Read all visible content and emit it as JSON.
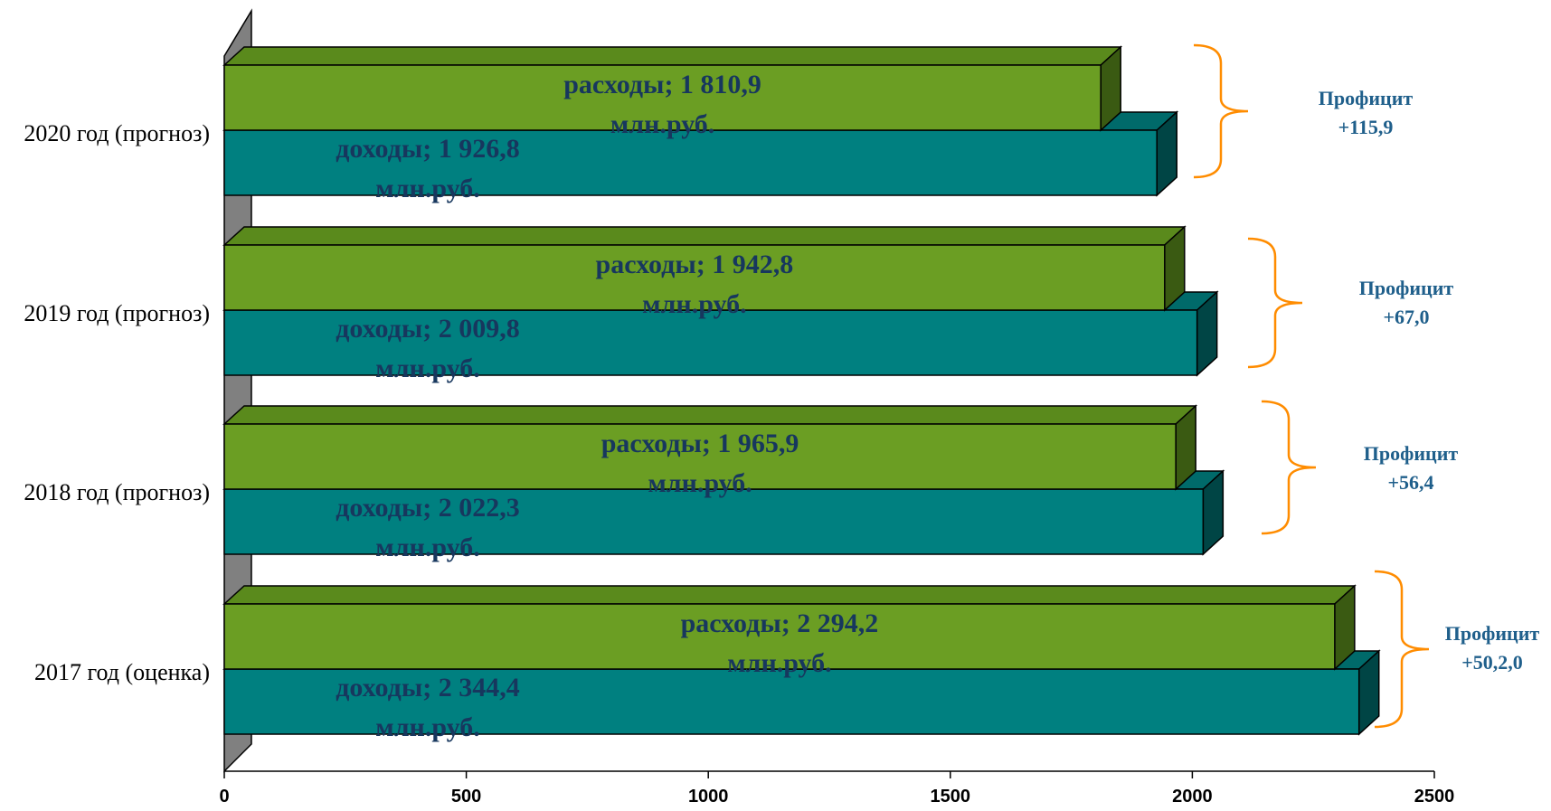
{
  "colors": {
    "expense": "#6b9e23",
    "expense_top": "#5a8a1c",
    "expense_side": "#3a5a12",
    "income": "#008080",
    "income_top": "#006a6a",
    "income_side": "#004545",
    "wall": "#808080",
    "label": "#17375e",
    "profit": "#1f5f8b",
    "brace": "#ff8c00"
  },
  "chart_data": {
    "type": "bar",
    "orientation": "horizontal",
    "categories": [
      "2020 год (прогноз)",
      "2019 год (прогноз)",
      "2018 год (прогноз)",
      "2017 год (оценка)"
    ],
    "series": [
      {
        "key": "expense",
        "values": [
          1810.9,
          1942.8,
          1965.9,
          2294.2
        ],
        "labels_line1": [
          "расходы; 1 810,9",
          "расходы; 1 942,8",
          "расходы; 1 965,9",
          "расходы; 2 294,2"
        ]
      },
      {
        "key": "income",
        "values": [
          1926.8,
          2009.8,
          2022.3,
          2344.4
        ],
        "labels_line1": [
          "доходы; 1 926,8",
          "доходы; 2 009,8",
          "доходы; 2 022,3",
          "доходы; 2 344,4"
        ]
      }
    ],
    "unit_line": "млн.руб.",
    "xlim": [
      0,
      2500
    ],
    "xticks": [
      "0",
      "500",
      "1000",
      "1500",
      "2000",
      "2500"
    ],
    "annotations": [
      {
        "line1": "Профицит",
        "line2": "+115,9"
      },
      {
        "line1": "Профицит",
        "line2": "+67,0"
      },
      {
        "line1": "Профицит",
        "line2": "+56,4"
      },
      {
        "line1": "Профицит",
        "line2": "+50,2,0"
      }
    ]
  }
}
